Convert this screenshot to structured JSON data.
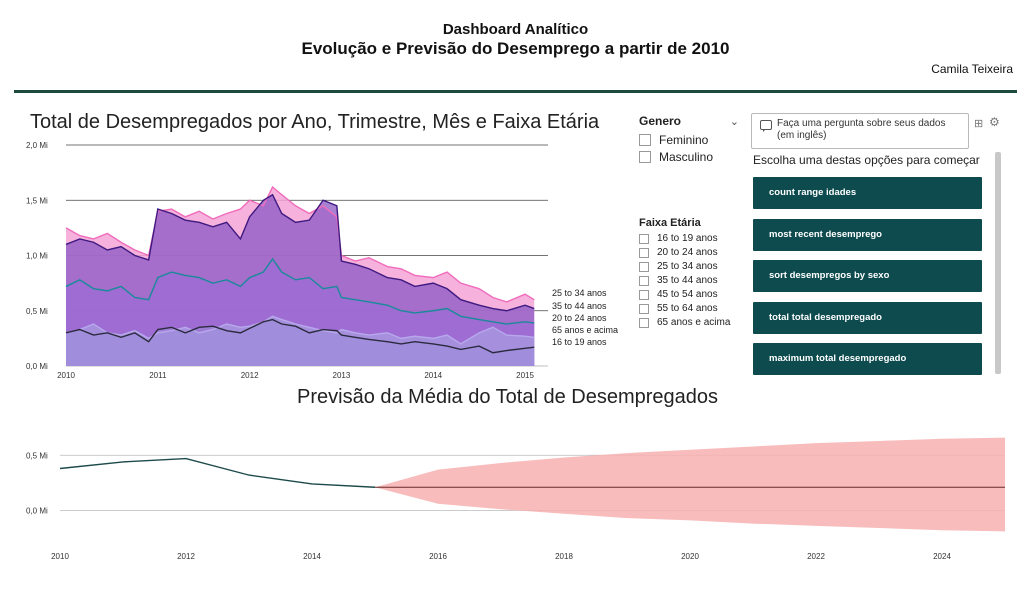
{
  "header": {
    "title": "Dashboard Analítico",
    "subtitle": "Evolução e Previsão do Desemprego a partir de 2010",
    "author": "Camila Teixeira"
  },
  "colors": {
    "rule": "#1d4a3c",
    "button_bg": "#0e4b4f",
    "forecast_band": "#f7b0b0",
    "forecast_line": "#1d4a4a"
  },
  "slicer_genero": {
    "title": "Genero",
    "options": [
      "Feminino",
      "Masculino"
    ]
  },
  "slicer_faixa": {
    "title": "Faixa Etária",
    "options": [
      "16 to 19 anos",
      "20 to 24 anos",
      "25 to 34 anos",
      "35 to 44 anos",
      "45 to 54 anos",
      "55 to 64 anos",
      "65 anos e acima"
    ]
  },
  "qa": {
    "prompt": "Faça uma pergunta sobre seus dados (em inglês)",
    "suggest_label": "Escolha uma destas opções para começar",
    "suggestions": [
      "count range idades",
      "most recent desemprego",
      "sort desempregos by sexo",
      "total total desempregado",
      "maximum total desempregado"
    ]
  },
  "chart_data": [
    {
      "type": "area",
      "title": "Total de Desempregados por Ano, Trimestre, Mês e Faixa Etária",
      "ytick_labels": [
        "0,0 Mi",
        "0,5 Mi",
        "1,0 Mi",
        "1,5 Mi",
        "2,0 Mi"
      ],
      "ylim": [
        0,
        2.0
      ],
      "xtick_labels": [
        "2010",
        "2011",
        "2012",
        "2013",
        "2014",
        "2015"
      ],
      "xlim": [
        2010.0,
        2015.25
      ],
      "grid": true,
      "series_labels_right": [
        "25 to 34 anos",
        "35 to 44 anos",
        "20 to 24 anos",
        "65 anos e acima",
        "16 to 19 anos"
      ],
      "series": [
        {
          "name": "25 to 34 anos",
          "color": "#f06cbc",
          "points": [
            [
              2010.0,
              1.25
            ],
            [
              2010.15,
              1.18
            ],
            [
              2010.3,
              1.15
            ],
            [
              2010.45,
              1.2
            ],
            [
              2010.6,
              1.12
            ],
            [
              2010.75,
              1.05
            ],
            [
              2010.9,
              1.0
            ],
            [
              2011.0,
              1.4
            ],
            [
              2011.15,
              1.42
            ],
            [
              2011.3,
              1.35
            ],
            [
              2011.45,
              1.4
            ],
            [
              2011.6,
              1.33
            ],
            [
              2011.75,
              1.38
            ],
            [
              2011.9,
              1.42
            ],
            [
              2012.0,
              1.5
            ],
            [
              2012.15,
              1.45
            ],
            [
              2012.25,
              1.62
            ],
            [
              2012.35,
              1.55
            ],
            [
              2012.5,
              1.45
            ],
            [
              2012.65,
              1.38
            ],
            [
              2012.8,
              1.45
            ],
            [
              2012.95,
              1.35
            ],
            [
              2013.0,
              1.0
            ],
            [
              2013.15,
              0.95
            ],
            [
              2013.3,
              0.98
            ],
            [
              2013.5,
              0.9
            ],
            [
              2013.65,
              0.88
            ],
            [
              2013.8,
              0.82
            ],
            [
              2014.0,
              0.8
            ],
            [
              2014.15,
              0.85
            ],
            [
              2014.3,
              0.75
            ],
            [
              2014.5,
              0.7
            ],
            [
              2014.65,
              0.62
            ],
            [
              2014.8,
              0.58
            ],
            [
              2015.0,
              0.65
            ],
            [
              2015.1,
              0.6
            ]
          ]
        },
        {
          "name": "35 to 44 anos",
          "color": "#3f1a80",
          "points": [
            [
              2010.0,
              1.1
            ],
            [
              2010.15,
              1.15
            ],
            [
              2010.3,
              1.12
            ],
            [
              2010.45,
              1.05
            ],
            [
              2010.6,
              1.08
            ],
            [
              2010.75,
              1.0
            ],
            [
              2010.9,
              0.96
            ],
            [
              2011.0,
              1.42
            ],
            [
              2011.15,
              1.38
            ],
            [
              2011.3,
              1.32
            ],
            [
              2011.45,
              1.3
            ],
            [
              2011.6,
              1.26
            ],
            [
              2011.75,
              1.3
            ],
            [
              2011.9,
              1.15
            ],
            [
              2012.0,
              1.35
            ],
            [
              2012.15,
              1.5
            ],
            [
              2012.25,
              1.55
            ],
            [
              2012.35,
              1.38
            ],
            [
              2012.5,
              1.3
            ],
            [
              2012.65,
              1.32
            ],
            [
              2012.8,
              1.5
            ],
            [
              2012.95,
              1.45
            ],
            [
              2013.0,
              0.95
            ],
            [
              2013.15,
              0.92
            ],
            [
              2013.3,
              0.88
            ],
            [
              2013.5,
              0.8
            ],
            [
              2013.65,
              0.78
            ],
            [
              2013.8,
              0.72
            ],
            [
              2014.0,
              0.75
            ],
            [
              2014.15,
              0.7
            ],
            [
              2014.3,
              0.6
            ],
            [
              2014.5,
              0.55
            ],
            [
              2014.65,
              0.52
            ],
            [
              2014.8,
              0.5
            ],
            [
              2015.0,
              0.55
            ],
            [
              2015.1,
              0.52
            ]
          ]
        },
        {
          "name": "20 to 24 anos",
          "color": "#1a8a9a",
          "points": [
            [
              2010.0,
              0.72
            ],
            [
              2010.15,
              0.78
            ],
            [
              2010.3,
              0.7
            ],
            [
              2010.45,
              0.68
            ],
            [
              2010.6,
              0.72
            ],
            [
              2010.75,
              0.62
            ],
            [
              2010.9,
              0.6
            ],
            [
              2011.0,
              0.8
            ],
            [
              2011.15,
              0.85
            ],
            [
              2011.3,
              0.82
            ],
            [
              2011.45,
              0.8
            ],
            [
              2011.6,
              0.75
            ],
            [
              2011.75,
              0.78
            ],
            [
              2011.9,
              0.72
            ],
            [
              2012.0,
              0.8
            ],
            [
              2012.15,
              0.85
            ],
            [
              2012.25,
              0.97
            ],
            [
              2012.35,
              0.85
            ],
            [
              2012.5,
              0.78
            ],
            [
              2012.65,
              0.8
            ],
            [
              2012.8,
              0.7
            ],
            [
              2012.95,
              0.72
            ],
            [
              2013.0,
              0.62
            ],
            [
              2013.15,
              0.6
            ],
            [
              2013.3,
              0.58
            ],
            [
              2013.5,
              0.55
            ],
            [
              2013.65,
              0.5
            ],
            [
              2013.8,
              0.48
            ],
            [
              2014.0,
              0.5
            ],
            [
              2014.15,
              0.52
            ],
            [
              2014.3,
              0.45
            ],
            [
              2014.5,
              0.42
            ],
            [
              2014.65,
              0.4
            ],
            [
              2014.8,
              0.38
            ],
            [
              2015.0,
              0.4
            ],
            [
              2015.1,
              0.39
            ]
          ]
        },
        {
          "name": "65 anos e acima",
          "color": "#b7a8ec",
          "points": [
            [
              2010.0,
              0.3
            ],
            [
              2010.15,
              0.33
            ],
            [
              2010.3,
              0.38
            ],
            [
              2010.45,
              0.3
            ],
            [
              2010.6,
              0.28
            ],
            [
              2010.75,
              0.32
            ],
            [
              2010.9,
              0.25
            ],
            [
              2011.0,
              0.3
            ],
            [
              2011.15,
              0.32
            ],
            [
              2011.3,
              0.35
            ],
            [
              2011.45,
              0.3
            ],
            [
              2011.6,
              0.33
            ],
            [
              2011.75,
              0.38
            ],
            [
              2011.9,
              0.35
            ],
            [
              2012.0,
              0.36
            ],
            [
              2012.15,
              0.4
            ],
            [
              2012.25,
              0.45
            ],
            [
              2012.35,
              0.42
            ],
            [
              2012.5,
              0.38
            ],
            [
              2012.65,
              0.35
            ],
            [
              2012.8,
              0.32
            ],
            [
              2012.95,
              0.3
            ],
            [
              2013.0,
              0.33
            ],
            [
              2013.15,
              0.3
            ],
            [
              2013.3,
              0.28
            ],
            [
              2013.5,
              0.3
            ],
            [
              2013.65,
              0.25
            ],
            [
              2013.8,
              0.27
            ],
            [
              2014.0,
              0.25
            ],
            [
              2014.15,
              0.28
            ],
            [
              2014.3,
              0.2
            ],
            [
              2014.5,
              0.3
            ],
            [
              2014.65,
              0.35
            ],
            [
              2014.8,
              0.28
            ],
            [
              2015.0,
              0.27
            ],
            [
              2015.1,
              0.26
            ]
          ]
        },
        {
          "name": "16 to 19 anos",
          "color": "#2b2b3f",
          "points": [
            [
              2010.0,
              0.3
            ],
            [
              2010.15,
              0.33
            ],
            [
              2010.3,
              0.28
            ],
            [
              2010.45,
              0.3
            ],
            [
              2010.6,
              0.26
            ],
            [
              2010.75,
              0.3
            ],
            [
              2010.9,
              0.22
            ],
            [
              2011.0,
              0.33
            ],
            [
              2011.15,
              0.35
            ],
            [
              2011.3,
              0.3
            ],
            [
              2011.45,
              0.35
            ],
            [
              2011.6,
              0.36
            ],
            [
              2011.75,
              0.32
            ],
            [
              2011.9,
              0.3
            ],
            [
              2012.0,
              0.34
            ],
            [
              2012.15,
              0.4
            ],
            [
              2012.25,
              0.42
            ],
            [
              2012.35,
              0.38
            ],
            [
              2012.5,
              0.36
            ],
            [
              2012.65,
              0.3
            ],
            [
              2012.8,
              0.33
            ],
            [
              2012.95,
              0.32
            ],
            [
              2013.0,
              0.28
            ],
            [
              2013.15,
              0.26
            ],
            [
              2013.3,
              0.24
            ],
            [
              2013.5,
              0.22
            ],
            [
              2013.65,
              0.2
            ],
            [
              2013.8,
              0.22
            ],
            [
              2014.0,
              0.2
            ],
            [
              2014.15,
              0.18
            ],
            [
              2014.3,
              0.15
            ],
            [
              2014.5,
              0.18
            ],
            [
              2014.65,
              0.12
            ],
            [
              2014.8,
              0.14
            ],
            [
              2015.0,
              0.16
            ],
            [
              2015.1,
              0.17
            ]
          ]
        }
      ]
    },
    {
      "type": "line",
      "title": "Previsão da Média do Total de Desempregados",
      "ytick_labels": [
        "0,0 Mi",
        "0,5 Mi"
      ],
      "ylim": [
        -0.45,
        0.82
      ],
      "xtick_labels": [
        "2010",
        "2012",
        "2014",
        "2016",
        "2018",
        "2020",
        "2022",
        "2024"
      ],
      "xlim": [
        2010.0,
        2025.0
      ],
      "grid": true,
      "actual": [
        [
          2010,
          0.38
        ],
        [
          2011,
          0.44
        ],
        [
          2012,
          0.47
        ],
        [
          2013,
          0.32
        ],
        [
          2014,
          0.24
        ],
        [
          2015,
          0.21
        ]
      ],
      "forecast": [
        [
          2015,
          0.21
        ],
        [
          2025,
          0.21
        ]
      ],
      "band_upper": [
        [
          2015,
          0.21
        ],
        [
          2016,
          0.37
        ],
        [
          2017,
          0.43
        ],
        [
          2018,
          0.48
        ],
        [
          2019,
          0.52
        ],
        [
          2020,
          0.55
        ],
        [
          2021,
          0.58
        ],
        [
          2022,
          0.61
        ],
        [
          2023,
          0.63
        ],
        [
          2024,
          0.65
        ],
        [
          2025,
          0.66
        ]
      ],
      "band_lower": [
        [
          2015,
          0.21
        ],
        [
          2016,
          0.06
        ],
        [
          2017,
          0.01
        ],
        [
          2018,
          -0.03
        ],
        [
          2019,
          -0.07
        ],
        [
          2020,
          -0.09
        ],
        [
          2021,
          -0.12
        ],
        [
          2022,
          -0.14
        ],
        [
          2023,
          -0.16
        ],
        [
          2024,
          -0.18
        ],
        [
          2025,
          -0.19
        ]
      ]
    }
  ]
}
